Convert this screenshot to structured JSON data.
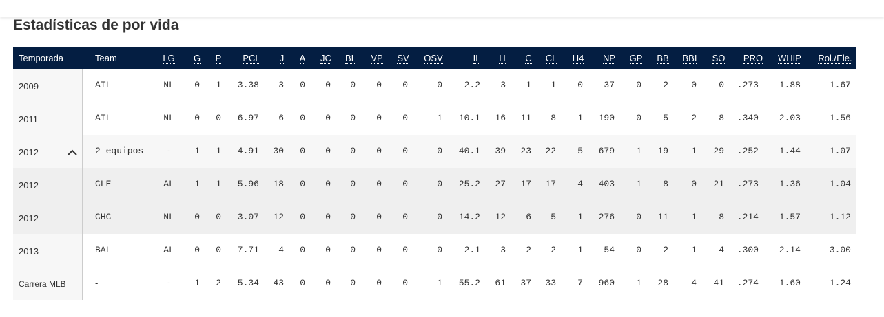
{
  "title": "Estadísticas de por vida",
  "table": {
    "header": [
      "Temporada",
      "Team",
      "LG",
      "G",
      "P",
      "PCL",
      "J",
      "A",
      "JC",
      "BL",
      "VP",
      "SV",
      "OSV",
      "IL",
      "H",
      "C",
      "CL",
      "H4",
      "NP",
      "GP",
      "BB",
      "BBI",
      "SO",
      "PRO",
      "WHIP",
      "Rol./Ele."
    ],
    "rows": [
      [
        "2009",
        "ATL",
        "NL",
        "0",
        "1",
        "3.38",
        "3",
        "0",
        "0",
        "0",
        "0",
        "0",
        "0",
        "2.2",
        "3",
        "1",
        "1",
        "0",
        "37",
        "0",
        "2",
        "0",
        "0",
        ".273",
        "1.88",
        "1.67"
      ],
      [
        "2011",
        "ATL",
        "NL",
        "0",
        "0",
        "6.97",
        "6",
        "0",
        "0",
        "0",
        "0",
        "0",
        "1",
        "10.1",
        "16",
        "11",
        "8",
        "1",
        "190",
        "0",
        "5",
        "2",
        "8",
        ".340",
        "2.03",
        "1.56"
      ],
      [
        "2012",
        "2 equipos",
        "-",
        "1",
        "1",
        "4.91",
        "30",
        "0",
        "0",
        "0",
        "0",
        "0",
        "0",
        "40.1",
        "39",
        "23",
        "22",
        "5",
        "679",
        "1",
        "19",
        "1",
        "29",
        ".252",
        "1.44",
        "1.07"
      ],
      [
        "2012",
        "CLE",
        "AL",
        "1",
        "1",
        "5.96",
        "18",
        "0",
        "0",
        "0",
        "0",
        "0",
        "0",
        "25.2",
        "27",
        "17",
        "17",
        "4",
        "403",
        "1",
        "8",
        "0",
        "21",
        ".273",
        "1.36",
        "1.04"
      ],
      [
        "2012",
        "CHC",
        "NL",
        "0",
        "0",
        "3.07",
        "12",
        "0",
        "0",
        "0",
        "0",
        "0",
        "0",
        "14.2",
        "12",
        "6",
        "5",
        "1",
        "276",
        "0",
        "11",
        "1",
        "8",
        ".214",
        "1.57",
        "1.12"
      ],
      [
        "2013",
        "BAL",
        "AL",
        "0",
        "0",
        "7.71",
        "4",
        "0",
        "0",
        "0",
        "0",
        "0",
        "0",
        "2.1",
        "3",
        "2",
        "2",
        "1",
        "54",
        "0",
        "2",
        "1",
        "4",
        ".300",
        "2.14",
        "3.00"
      ],
      [
        "Carrera MLB",
        "-",
        "-",
        "1",
        "2",
        "5.34",
        "43",
        "0",
        "0",
        "0",
        "0",
        "0",
        "1",
        "55.2",
        "61",
        "37",
        "33",
        "7",
        "960",
        "1",
        "28",
        "4",
        "41",
        ".274",
        "1.60",
        "1.24"
      ]
    ]
  }
}
